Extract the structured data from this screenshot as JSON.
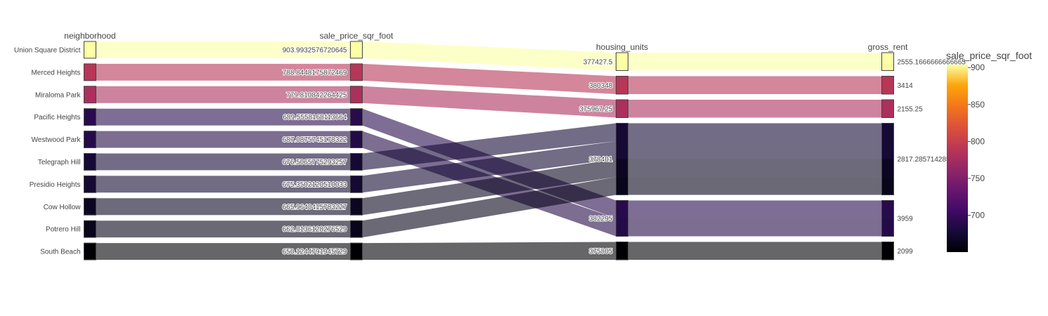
{
  "chart_data": {
    "type": "parallel_categories",
    "dimensions": [
      {
        "name": "neighborhood",
        "categories": [
          "Union Square District",
          "Merced Heights",
          "Miraloma Park",
          "Pacific Heights",
          "Westwood Park",
          "Telegraph Hill",
          "Presidio Heights",
          "Cow Hollow",
          "Potrero Hill",
          "South Beach"
        ]
      },
      {
        "name": "sale_price_sqr_foot",
        "categories": [
          "903.9932576720645",
          "788.8448175872469",
          "779.810842264425",
          "689.5558168113664",
          "687.0875745178322",
          "676.5065775293257",
          "675.3502120510033",
          "665.9640415783227",
          "662.0136128276529",
          "650.1244791945729"
        ]
      },
      {
        "name": "housing_units",
        "categories": [
          "377427.5",
          "380348",
          "375967.25",
          "378401",
          "382295",
          "375805"
        ]
      },
      {
        "name": "gross_rent",
        "categories": [
          "2555.1666666666665",
          "3414",
          "2155.25",
          "2817.285714285714",
          "3959",
          "2099"
        ]
      }
    ],
    "records": [
      {
        "neighborhood": "Union Square District",
        "sale_price_sqr_foot": 903.9932576720645,
        "housing_units": 377427.5,
        "gross_rent": 2555.1666666666665
      },
      {
        "neighborhood": "Merced Heights",
        "sale_price_sqr_foot": 788.8448175872469,
        "housing_units": 380348,
        "gross_rent": 3414
      },
      {
        "neighborhood": "Miraloma Park",
        "sale_price_sqr_foot": 779.810842264425,
        "housing_units": 375967.25,
        "gross_rent": 2155.25
      },
      {
        "neighborhood": "Pacific Heights",
        "sale_price_sqr_foot": 689.5558168113664,
        "housing_units": 382295,
        "gross_rent": 3959
      },
      {
        "neighborhood": "Westwood Park",
        "sale_price_sqr_foot": 687.0875745178322,
        "housing_units": 382295,
        "gross_rent": 3959
      },
      {
        "neighborhood": "Telegraph Hill",
        "sale_price_sqr_foot": 676.5065775293257,
        "housing_units": 378401,
        "gross_rent": 2817.285714285714
      },
      {
        "neighborhood": "Presidio Heights",
        "sale_price_sqr_foot": 675.3502120510033,
        "housing_units": 378401,
        "gross_rent": 2817.285714285714
      },
      {
        "neighborhood": "Cow Hollow",
        "sale_price_sqr_foot": 665.9640415783227,
        "housing_units": 378401,
        "gross_rent": 2817.285714285714
      },
      {
        "neighborhood": "Potrero Hill",
        "sale_price_sqr_foot": 662.0136128276529,
        "housing_units": 378401,
        "gross_rent": 2817.285714285714
      },
      {
        "neighborhood": "South Beach",
        "sale_price_sqr_foot": 650.1244791945729,
        "housing_units": 375805,
        "gross_rent": 2099
      }
    ],
    "color_variable": "sale_price_sqr_foot",
    "colorscale": "inferno",
    "colorbar": {
      "title": "sale_price_sqr_foot",
      "range": [
        650.1244791945729,
        903.9932576720645
      ],
      "ticks": [
        "900",
        "850",
        "800",
        "750",
        "700"
      ]
    }
  }
}
